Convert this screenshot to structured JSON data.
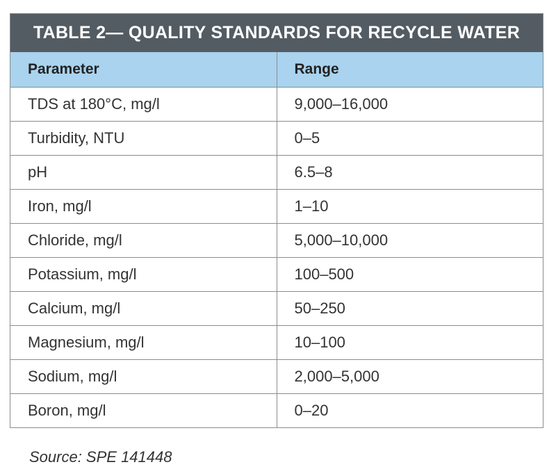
{
  "table": {
    "title": "TABLE 2— QUALITY STANDARDS FOR RECYCLE WATER",
    "headers": [
      "Parameter",
      "Range"
    ],
    "rows": [
      [
        "TDS at 180°C, mg/l",
        "9,000–16,000"
      ],
      [
        "Turbidity, NTU",
        "0–5"
      ],
      [
        "pH",
        "6.5–8"
      ],
      [
        "Iron, mg/l",
        "1–10"
      ],
      [
        "Chloride, mg/l",
        "5,000–10,000"
      ],
      [
        "Potassium, mg/l",
        "100–500"
      ],
      [
        "Calcium, mg/l",
        "50–250"
      ],
      [
        "Magnesium, mg/l",
        "10–100"
      ],
      [
        "Sodium, mg/l",
        "2,000–5,000"
      ],
      [
        "Boron, mg/l",
        "0–20"
      ]
    ]
  },
  "source": "Source: SPE 141448",
  "colors": {
    "title_bar": "#545c63",
    "header_row": "#a9d3ee",
    "border": "#8a8c8e"
  }
}
